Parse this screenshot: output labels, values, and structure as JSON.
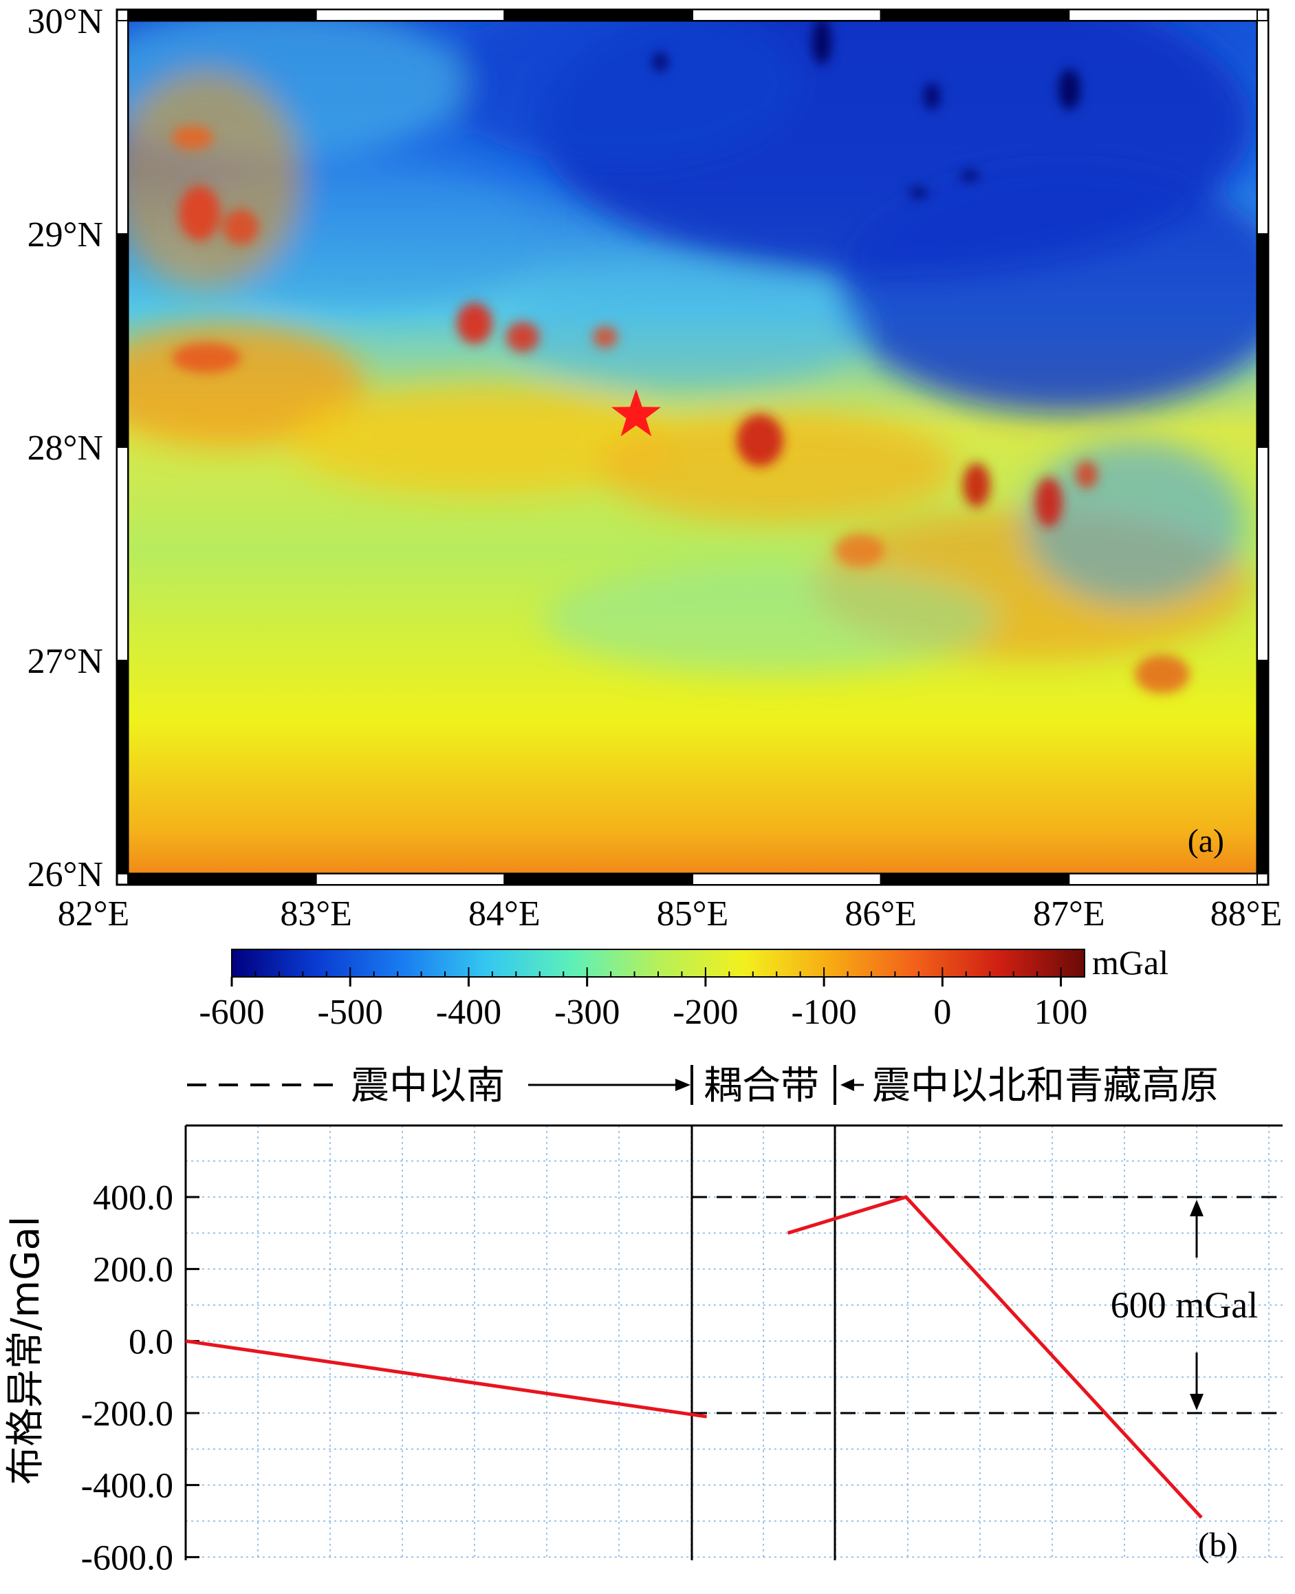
{
  "panel_a": {
    "label": "(a)",
    "lat_labels": [
      "30°N",
      "29°N",
      "28°N",
      "27°N",
      "26°N"
    ],
    "lon_labels": [
      "82°E",
      "83°E",
      "84°E",
      "85°E",
      "86°E",
      "87°E",
      "88°E"
    ],
    "epicenter": {
      "name": "epicenter",
      "lon": 84.7,
      "lat": 28.15
    },
    "colorbar": {
      "unit": "mGal",
      "tick_labels": [
        "-600",
        "-500",
        "-400",
        "-300",
        "-200",
        "-100",
        "0",
        "100"
      ],
      "range": [
        -600,
        120
      ],
      "colors": [
        "#00007f",
        "#0a3cd2",
        "#1a7cf0",
        "#35c8f0",
        "#5ef0b8",
        "#b6f05a",
        "#f2f01e",
        "#f7ac14",
        "#f2621a",
        "#cf1f12",
        "#6a0a08"
      ]
    }
  },
  "zones": {
    "south": "震中以南",
    "coupling": "耦合带",
    "north": "震中以北和青藏高原"
  },
  "panel_b": {
    "label": "(b)",
    "ylabel": "布格异常/mGal",
    "ytick_labels": [
      "400.0",
      "200.0",
      "0.0",
      "-200.0",
      "-400.0",
      "-600.0"
    ],
    "annotation": "600 mGal"
  },
  "chart_data": {
    "type": "line",
    "title": "",
    "xlabel": "",
    "ylabel": "布格异常/mGal",
    "ylim": [
      -600,
      600
    ],
    "xlim": [
      0,
      15
    ],
    "yticks": [
      400,
      200,
      0,
      -200,
      -400,
      -600
    ],
    "dividers_x": [
      7,
      9
    ],
    "reference_lines_y": [
      400,
      -200
    ],
    "difference_label": "600 mGal",
    "series": [
      {
        "name": "south",
        "color": "#e8141e",
        "x": [
          0,
          7.2
        ],
        "y": [
          0,
          -210
        ]
      },
      {
        "name": "coupling-north",
        "color": "#e8141e",
        "x": [
          8.3,
          9.9,
          13.9
        ],
        "y": [
          300,
          400,
          -490
        ]
      }
    ]
  }
}
